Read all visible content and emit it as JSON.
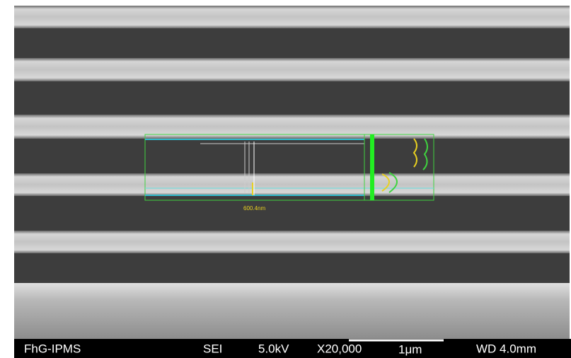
{
  "measurement": {
    "label": "600.4nm"
  },
  "footer": {
    "label": "FhG-IPMS",
    "mode": "SEI",
    "voltage": "5.0kV",
    "magnification": "X20,000",
    "scale": "1μm",
    "working_distance": "WD 4.0mm"
  }
}
